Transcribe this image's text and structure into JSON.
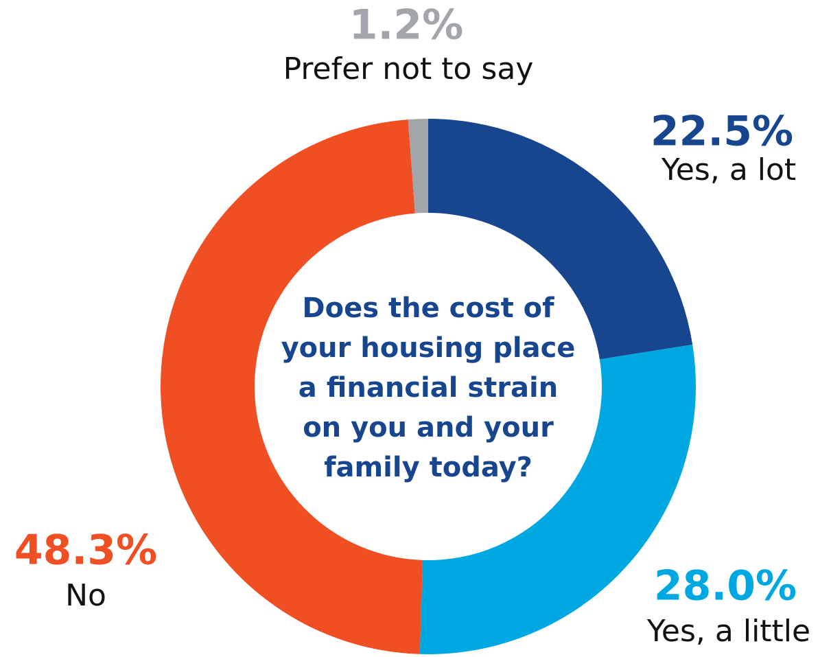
{
  "chart_data": {
    "type": "pie",
    "title": "Does the cost of your housing place a financial strain on you and your family today?",
    "categories": [
      "Yes, a lot",
      "Yes, a little",
      "No",
      "Prefer not to say"
    ],
    "values": [
      22.5,
      28.0,
      48.3,
      1.2
    ],
    "value_labels": [
      "22.5%",
      "28.0%",
      "48.3%",
      "1.2%"
    ],
    "colors": [
      "#17468f",
      "#00a8e1",
      "#f04e23",
      "#a2a5aa"
    ]
  }
}
